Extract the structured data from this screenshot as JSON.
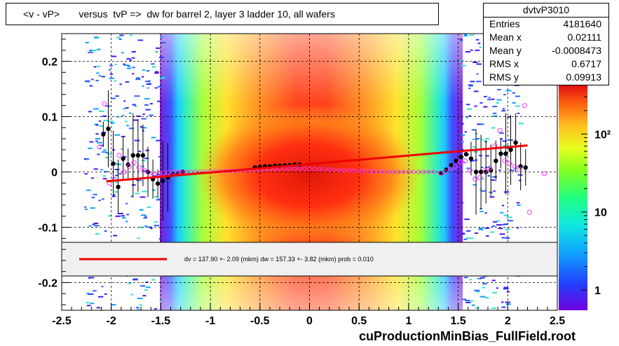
{
  "title": "<v - vP>       versus  tvP =>  dw for barrel 2, layer 3 ladder 10, all wafers",
  "stats": {
    "name": "dvtvP3010",
    "rows": [
      {
        "label": "Entries",
        "value": "4181640"
      },
      {
        "label": "Mean x",
        "value": "0.02111"
      },
      {
        "label": "Mean y",
        "value": "-0.0008473"
      },
      {
        "label": "RMS x",
        "value": "0.6717"
      },
      {
        "label": "RMS y",
        "value": "0.09913"
      }
    ]
  },
  "fit_legend": "dv =  137.90 +-  2.09 (mkm) dw =  157.33 +-  3.82 (mkm) prob = 0.010",
  "footer": "cuProductionMinBias_FullField.root",
  "colors": {
    "fit_line": "#ee0000",
    "profile_mean": "#000000",
    "profile_open": "#ff33ff"
  },
  "chart_data": {
    "type": "heatmap",
    "xlim": [
      -2.5,
      2.5
    ],
    "ylim": [
      -0.25,
      0.25
    ],
    "x_ticks": [
      -2.5,
      -2,
      -1.5,
      -1,
      -0.5,
      0,
      0.5,
      1,
      1.5,
      2,
      2.5
    ],
    "x_tick_labels": [
      "-2.5",
      "-2",
      "-1.5",
      "-1",
      "-0.5",
      "0",
      "0.5",
      "1",
      "1.5",
      "2",
      "2.5"
    ],
    "y_ticks": [
      -0.2,
      -0.1,
      0,
      0.1,
      0.2
    ],
    "y_tick_labels": [
      "-0.2",
      "-0.1",
      "0",
      "0.1",
      "0.2"
    ],
    "grid": true,
    "colorbar": {
      "scale": "log",
      "ticks": [
        1,
        10,
        100
      ],
      "tick_labels": [
        "1",
        "10",
        "10²"
      ]
    },
    "fit_line": {
      "x": [
        -2.05,
        2.2
      ],
      "y": [
        -0.017,
        0.048
      ]
    },
    "profile_mean": [
      [
        -2.08,
        0.068
      ],
      [
        -2.03,
        0.078
      ],
      [
        -1.98,
        0.015
      ],
      [
        -1.93,
        -0.027
      ],
      [
        -1.88,
        0.024
      ],
      [
        -1.83,
        0.013
      ],
      [
        -1.78,
        0.03
      ],
      [
        -1.73,
        0.03
      ],
      [
        -1.68,
        0.03
      ],
      [
        -1.63,
        0.0
      ],
      [
        -1.58,
        -0.013
      ],
      [
        -1.53,
        -0.021
      ],
      [
        -1.48,
        -0.016
      ],
      [
        -1.43,
        -0.01
      ],
      [
        -1.38,
        -0.004
      ],
      [
        -1.33,
        -0.003
      ],
      [
        -1.28,
        0.0
      ],
      [
        -0.55,
        0.008
      ],
      [
        -0.5,
        0.009
      ],
      [
        -0.45,
        0.01
      ],
      [
        -0.4,
        0.01
      ],
      [
        -0.35,
        0.011
      ],
      [
        -0.3,
        0.011
      ],
      [
        -0.25,
        0.012
      ],
      [
        -0.2,
        0.012
      ],
      [
        -0.15,
        0.013
      ],
      [
        -0.1,
        0.013
      ],
      [
        1.33,
        -0.002
      ],
      [
        1.38,
        0.004
      ],
      [
        1.43,
        0.012
      ],
      [
        1.48,
        0.02
      ],
      [
        1.53,
        0.027
      ],
      [
        1.58,
        0.032
      ],
      [
        1.63,
        0.024
      ],
      [
        1.68,
        0.0
      ],
      [
        1.73,
        0.0
      ],
      [
        1.78,
        0.0
      ],
      [
        1.83,
        0.003
      ],
      [
        1.88,
        0.02
      ],
      [
        1.93,
        0.033
      ],
      [
        1.98,
        0.033
      ],
      [
        2.03,
        0.04
      ],
      [
        2.08,
        0.053
      ],
      [
        2.13,
        0.01
      ],
      [
        2.18,
        0.008
      ]
    ],
    "profile_open": [
      [
        -2.12,
        0.045
      ],
      [
        -2.07,
        0.123
      ],
      [
        -2.02,
        -0.02
      ],
      [
        -1.97,
        -0.013
      ],
      [
        -1.92,
        0.03
      ],
      [
        -1.87,
        0.0
      ],
      [
        -1.82,
        0.01
      ],
      [
        -1.77,
        0.017
      ],
      [
        -1.72,
        0.008
      ],
      [
        -1.67,
        0.003
      ],
      [
        -1.62,
        -0.002
      ],
      [
        -1.57,
        -0.005
      ],
      [
        -1.52,
        -0.003
      ],
      [
        -1.47,
        -0.002
      ],
      [
        -1.42,
        -0.001
      ],
      [
        -1.37,
        0.0
      ],
      [
        -1.32,
        0.0
      ],
      [
        1.32,
        -0.002
      ],
      [
        1.37,
        0.0
      ],
      [
        1.42,
        0.005
      ],
      [
        1.47,
        0.01
      ],
      [
        1.52,
        0.018
      ],
      [
        1.57,
        0.02
      ],
      [
        1.62,
        0.003
      ],
      [
        1.67,
        -0.013
      ],
      [
        1.72,
        -0.01
      ],
      [
        1.77,
        0.002
      ],
      [
        1.82,
        0.007
      ],
      [
        1.87,
        0.047
      ],
      [
        1.92,
        0.075
      ],
      [
        1.97,
        0.02
      ],
      [
        2.02,
        0.015
      ],
      [
        2.07,
        0.01
      ],
      [
        2.12,
        0.005
      ],
      [
        2.17,
        0.12
      ],
      [
        2.22,
        -0.073
      ],
      [
        2.37,
        -0.003
      ]
    ]
  }
}
